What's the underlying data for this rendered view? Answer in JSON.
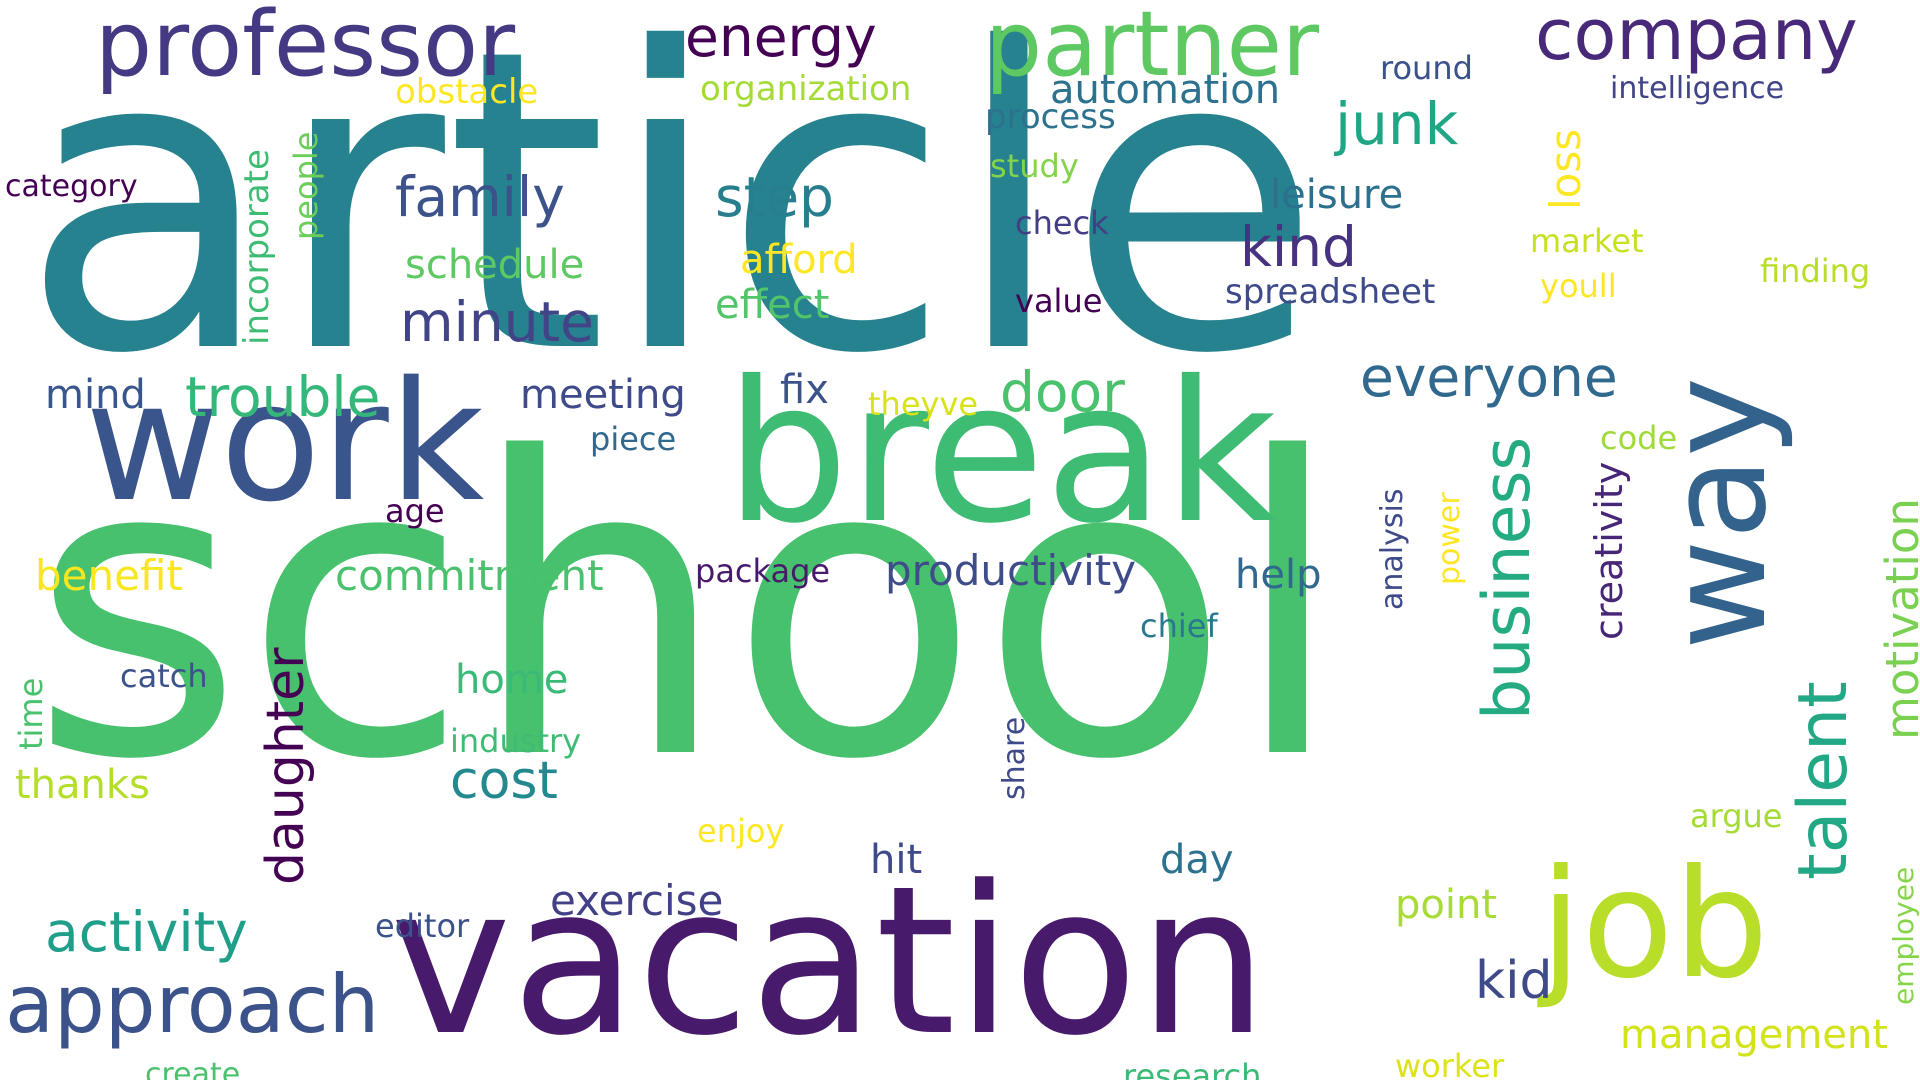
{
  "word_cloud": {
    "words": [
      {
        "id": "article",
        "text": "article",
        "color": "#26828e"
      },
      {
        "id": "school",
        "text": "school",
        "color": "#48c16e"
      },
      {
        "id": "vacation",
        "text": "vacation",
        "color": "#481a6c"
      },
      {
        "id": "break",
        "text": "break",
        "color": "#3fbc73"
      },
      {
        "id": "work",
        "text": "work",
        "color": "#3a548c"
      },
      {
        "id": "job",
        "text": "job",
        "color": "#b8de29"
      },
      {
        "id": "way",
        "text": "way",
        "color": "#33638d"
      },
      {
        "id": "professor",
        "text": "professor",
        "color": "#443983"
      },
      {
        "id": "partner",
        "text": "partner",
        "color": "#5ec962"
      },
      {
        "id": "company",
        "text": "company",
        "color": "#482878"
      },
      {
        "id": "approach",
        "text": "approach",
        "color": "#3b528b"
      },
      {
        "id": "talent",
        "text": "talent",
        "color": "#22a884"
      },
      {
        "id": "business",
        "text": "business",
        "color": "#25ab82"
      },
      {
        "id": "energy",
        "text": "energy",
        "color": "#440154"
      },
      {
        "id": "junk",
        "text": "junk",
        "color": "#21a685"
      },
      {
        "id": "family",
        "text": "family",
        "color": "#3b528b"
      },
      {
        "id": "step",
        "text": "step",
        "color": "#277f8e"
      },
      {
        "id": "minute",
        "text": "minute",
        "color": "#414487"
      },
      {
        "id": "trouble",
        "text": "trouble",
        "color": "#35b779"
      },
      {
        "id": "everyone",
        "text": "everyone",
        "color": "#31688e"
      },
      {
        "id": "door",
        "text": "door",
        "color": "#4ac16d"
      },
      {
        "id": "kind",
        "text": "kind",
        "color": "#46327e"
      },
      {
        "id": "activity",
        "text": "activity",
        "color": "#1f9e89"
      },
      {
        "id": "daughter",
        "text": "daughter",
        "color": "#440154"
      },
      {
        "id": "cost",
        "text": "cost",
        "color": "#23898e"
      },
      {
        "id": "kid",
        "text": "kid",
        "color": "#3e4a89"
      },
      {
        "id": "motivation",
        "text": "motivation",
        "color": "#7ad151"
      },
      {
        "id": "productivity",
        "text": "productivity",
        "color": "#3e4c8a"
      },
      {
        "id": "exercise",
        "text": "exercise",
        "color": "#424086"
      },
      {
        "id": "management",
        "text": "management",
        "color": "#d2e21b"
      },
      {
        "id": "loss",
        "text": "loss",
        "color": "#fde725"
      },
      {
        "id": "commitment",
        "text": "commitment",
        "color": "#4ac16d"
      },
      {
        "id": "benefit",
        "text": "benefit",
        "color": "#f8e621"
      },
      {
        "id": "schedule",
        "text": "schedule",
        "color": "#5ec962"
      },
      {
        "id": "afford",
        "text": "afford",
        "color": "#fde725"
      },
      {
        "id": "effect",
        "text": "effect",
        "color": "#52c569"
      },
      {
        "id": "meeting",
        "text": "meeting",
        "color": "#3e4a89"
      },
      {
        "id": "automation",
        "text": "automation",
        "color": "#2c728e"
      },
      {
        "id": "leisure",
        "text": "leisure",
        "color": "#2d708e"
      },
      {
        "id": "mind",
        "text": "mind",
        "color": "#39568c"
      },
      {
        "id": "fix",
        "text": "fix",
        "color": "#3b528b"
      },
      {
        "id": "home",
        "text": "home",
        "color": "#3aba76"
      },
      {
        "id": "help",
        "text": "help",
        "color": "#31688e"
      },
      {
        "id": "hit",
        "text": "hit",
        "color": "#3e4a89"
      },
      {
        "id": "day",
        "text": "day",
        "color": "#2c728e"
      },
      {
        "id": "creativity",
        "text": "creativity",
        "color": "#482677"
      },
      {
        "id": "point",
        "text": "point",
        "color": "#a8db34"
      },
      {
        "id": "thanks",
        "text": "thanks",
        "color": "#b5de2b"
      },
      {
        "id": "organization",
        "text": "organization",
        "color": "#a5db36"
      },
      {
        "id": "incorporate",
        "text": "incorporate",
        "color": "#3fbc73"
      },
      {
        "id": "spreadsheet",
        "text": "spreadsheet",
        "color": "#3e4a89"
      },
      {
        "id": "obstacle",
        "text": "obstacle",
        "color": "#fde725"
      },
      {
        "id": "process",
        "text": "process",
        "color": "#2c728e"
      },
      {
        "id": "intelligence",
        "text": "intelligence",
        "color": "#414487"
      },
      {
        "id": "round",
        "text": "round",
        "color": "#3b528b"
      },
      {
        "id": "category",
        "text": "category",
        "color": "#440154"
      },
      {
        "id": "people",
        "text": "people",
        "color": "#6ccd5a"
      },
      {
        "id": "study",
        "text": "study",
        "color": "#84d44b"
      },
      {
        "id": "check",
        "text": "check",
        "color": "#433e85"
      },
      {
        "id": "value",
        "text": "value",
        "color": "#440154"
      },
      {
        "id": "market",
        "text": "market",
        "color": "#c8e020"
      },
      {
        "id": "youll",
        "text": "youll",
        "color": "#fde725"
      },
      {
        "id": "finding",
        "text": "finding",
        "color": "#b8de29"
      },
      {
        "id": "theyve",
        "text": "theyve",
        "color": "#d8e219"
      },
      {
        "id": "piece",
        "text": "piece",
        "color": "#31688e"
      },
      {
        "id": "age",
        "text": "age",
        "color": "#440154"
      },
      {
        "id": "package",
        "text": "package",
        "color": "#481a6c"
      },
      {
        "id": "analysis",
        "text": "analysis",
        "color": "#3e4a89"
      },
      {
        "id": "power",
        "text": "power",
        "color": "#fde725"
      },
      {
        "id": "code",
        "text": "code",
        "color": "#a0da39"
      },
      {
        "id": "chief",
        "text": "chief",
        "color": "#2a788e"
      },
      {
        "id": "catch",
        "text": "catch",
        "color": "#3b528b"
      },
      {
        "id": "time",
        "text": "time",
        "color": "#4ac16d"
      },
      {
        "id": "industry",
        "text": "industry",
        "color": "#3fbc73"
      },
      {
        "id": "share",
        "text": "share",
        "color": "#3e4a89"
      },
      {
        "id": "enjoy",
        "text": "enjoy",
        "color": "#fde725"
      },
      {
        "id": "argue",
        "text": "argue",
        "color": "#a5db36"
      },
      {
        "id": "employee",
        "text": "employee",
        "color": "#86d549"
      },
      {
        "id": "editor",
        "text": "editor",
        "color": "#3b528b"
      },
      {
        "id": "create",
        "text": "create",
        "color": "#4ac16d"
      },
      {
        "id": "research",
        "text": "research",
        "color": "#3aba76"
      },
      {
        "id": "worker",
        "text": "worker",
        "color": "#dde318"
      }
    ]
  }
}
